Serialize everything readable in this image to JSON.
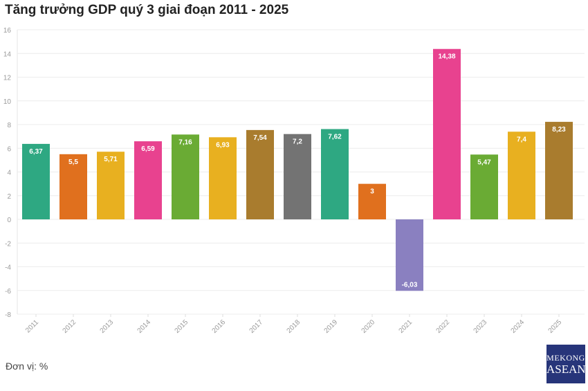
{
  "chart_data": {
    "type": "bar",
    "title": "Tăng trưởng GDP quý 3 giai đoạn 2011 - 2025",
    "xlabel": "",
    "ylabel": "",
    "unit_note": "Đơn vị: %",
    "ylim": [
      -8,
      16
    ],
    "yticks": [
      -8,
      -6,
      -4,
      -2,
      0,
      2,
      4,
      6,
      8,
      10,
      12,
      14,
      16
    ],
    "grid": true,
    "categories": [
      "2011",
      "2012",
      "2013",
      "2014",
      "2015",
      "2016",
      "2017",
      "2018",
      "2019",
      "2020",
      "2021",
      "2022",
      "2023",
      "2024",
      "2025"
    ],
    "values": [
      6.37,
      5.5,
      5.71,
      6.59,
      7.16,
      6.93,
      7.54,
      7.2,
      7.62,
      3,
      -6.03,
      14.38,
      5.47,
      7.4,
      8.23
    ],
    "labels": [
      "6,37",
      "5,5",
      "5,71",
      "6,59",
      "7,16",
      "6,93",
      "7,54",
      "7,2",
      "7,62",
      "3",
      "-6,03",
      "14,38",
      "5,47",
      "7,4",
      "8,23"
    ],
    "colors": [
      "#2ea882",
      "#e0701e",
      "#e8b020",
      "#e8428f",
      "#6aab34",
      "#e8b020",
      "#a97c2e",
      "#737373",
      "#2ea882",
      "#e0701e",
      "#8a80c0",
      "#e8428f",
      "#6aab34",
      "#e8b020",
      "#a97c2e"
    ]
  },
  "logo": {
    "line1": "MEKONG",
    "line2": "ASEAN"
  }
}
